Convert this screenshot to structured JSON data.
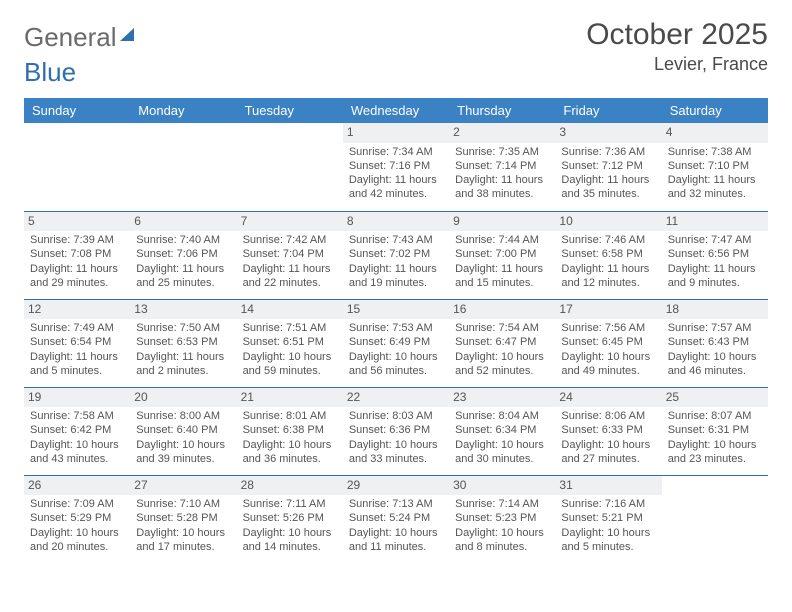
{
  "logo": {
    "word1": "General",
    "word2": "Blue"
  },
  "title": {
    "month": "October 2025",
    "location": "Levier, France"
  },
  "colors": {
    "header_bg": "#3b82c4",
    "header_text": "#ffffff",
    "cell_border": "#2f6fad",
    "daynum_bg": "#eef0f1",
    "text": "#555555",
    "logo_gray": "#6a6a6a",
    "logo_blue": "#2f6fad"
  },
  "weekdays": [
    "Sunday",
    "Monday",
    "Tuesday",
    "Wednesday",
    "Thursday",
    "Friday",
    "Saturday"
  ],
  "weeks": [
    [
      {
        "empty": true
      },
      {
        "empty": true
      },
      {
        "empty": true
      },
      {
        "day": "1",
        "sunrise": "Sunrise: 7:34 AM",
        "sunset": "Sunset: 7:16 PM",
        "daylight1": "Daylight: 11 hours",
        "daylight2": "and 42 minutes."
      },
      {
        "day": "2",
        "sunrise": "Sunrise: 7:35 AM",
        "sunset": "Sunset: 7:14 PM",
        "daylight1": "Daylight: 11 hours",
        "daylight2": "and 38 minutes."
      },
      {
        "day": "3",
        "sunrise": "Sunrise: 7:36 AM",
        "sunset": "Sunset: 7:12 PM",
        "daylight1": "Daylight: 11 hours",
        "daylight2": "and 35 minutes."
      },
      {
        "day": "4",
        "sunrise": "Sunrise: 7:38 AM",
        "sunset": "Sunset: 7:10 PM",
        "daylight1": "Daylight: 11 hours",
        "daylight2": "and 32 minutes."
      }
    ],
    [
      {
        "day": "5",
        "sunrise": "Sunrise: 7:39 AM",
        "sunset": "Sunset: 7:08 PM",
        "daylight1": "Daylight: 11 hours",
        "daylight2": "and 29 minutes."
      },
      {
        "day": "6",
        "sunrise": "Sunrise: 7:40 AM",
        "sunset": "Sunset: 7:06 PM",
        "daylight1": "Daylight: 11 hours",
        "daylight2": "and 25 minutes."
      },
      {
        "day": "7",
        "sunrise": "Sunrise: 7:42 AM",
        "sunset": "Sunset: 7:04 PM",
        "daylight1": "Daylight: 11 hours",
        "daylight2": "and 22 minutes."
      },
      {
        "day": "8",
        "sunrise": "Sunrise: 7:43 AM",
        "sunset": "Sunset: 7:02 PM",
        "daylight1": "Daylight: 11 hours",
        "daylight2": "and 19 minutes."
      },
      {
        "day": "9",
        "sunrise": "Sunrise: 7:44 AM",
        "sunset": "Sunset: 7:00 PM",
        "daylight1": "Daylight: 11 hours",
        "daylight2": "and 15 minutes."
      },
      {
        "day": "10",
        "sunrise": "Sunrise: 7:46 AM",
        "sunset": "Sunset: 6:58 PM",
        "daylight1": "Daylight: 11 hours",
        "daylight2": "and 12 minutes."
      },
      {
        "day": "11",
        "sunrise": "Sunrise: 7:47 AM",
        "sunset": "Sunset: 6:56 PM",
        "daylight1": "Daylight: 11 hours",
        "daylight2": "and 9 minutes."
      }
    ],
    [
      {
        "day": "12",
        "sunrise": "Sunrise: 7:49 AM",
        "sunset": "Sunset: 6:54 PM",
        "daylight1": "Daylight: 11 hours",
        "daylight2": "and 5 minutes."
      },
      {
        "day": "13",
        "sunrise": "Sunrise: 7:50 AM",
        "sunset": "Sunset: 6:53 PM",
        "daylight1": "Daylight: 11 hours",
        "daylight2": "and 2 minutes."
      },
      {
        "day": "14",
        "sunrise": "Sunrise: 7:51 AM",
        "sunset": "Sunset: 6:51 PM",
        "daylight1": "Daylight: 10 hours",
        "daylight2": "and 59 minutes."
      },
      {
        "day": "15",
        "sunrise": "Sunrise: 7:53 AM",
        "sunset": "Sunset: 6:49 PM",
        "daylight1": "Daylight: 10 hours",
        "daylight2": "and 56 minutes."
      },
      {
        "day": "16",
        "sunrise": "Sunrise: 7:54 AM",
        "sunset": "Sunset: 6:47 PM",
        "daylight1": "Daylight: 10 hours",
        "daylight2": "and 52 minutes."
      },
      {
        "day": "17",
        "sunrise": "Sunrise: 7:56 AM",
        "sunset": "Sunset: 6:45 PM",
        "daylight1": "Daylight: 10 hours",
        "daylight2": "and 49 minutes."
      },
      {
        "day": "18",
        "sunrise": "Sunrise: 7:57 AM",
        "sunset": "Sunset: 6:43 PM",
        "daylight1": "Daylight: 10 hours",
        "daylight2": "and 46 minutes."
      }
    ],
    [
      {
        "day": "19",
        "sunrise": "Sunrise: 7:58 AM",
        "sunset": "Sunset: 6:42 PM",
        "daylight1": "Daylight: 10 hours",
        "daylight2": "and 43 minutes."
      },
      {
        "day": "20",
        "sunrise": "Sunrise: 8:00 AM",
        "sunset": "Sunset: 6:40 PM",
        "daylight1": "Daylight: 10 hours",
        "daylight2": "and 39 minutes."
      },
      {
        "day": "21",
        "sunrise": "Sunrise: 8:01 AM",
        "sunset": "Sunset: 6:38 PM",
        "daylight1": "Daylight: 10 hours",
        "daylight2": "and 36 minutes."
      },
      {
        "day": "22",
        "sunrise": "Sunrise: 8:03 AM",
        "sunset": "Sunset: 6:36 PM",
        "daylight1": "Daylight: 10 hours",
        "daylight2": "and 33 minutes."
      },
      {
        "day": "23",
        "sunrise": "Sunrise: 8:04 AM",
        "sunset": "Sunset: 6:34 PM",
        "daylight1": "Daylight: 10 hours",
        "daylight2": "and 30 minutes."
      },
      {
        "day": "24",
        "sunrise": "Sunrise: 8:06 AM",
        "sunset": "Sunset: 6:33 PM",
        "daylight1": "Daylight: 10 hours",
        "daylight2": "and 27 minutes."
      },
      {
        "day": "25",
        "sunrise": "Sunrise: 8:07 AM",
        "sunset": "Sunset: 6:31 PM",
        "daylight1": "Daylight: 10 hours",
        "daylight2": "and 23 minutes."
      }
    ],
    [
      {
        "day": "26",
        "sunrise": "Sunrise: 7:09 AM",
        "sunset": "Sunset: 5:29 PM",
        "daylight1": "Daylight: 10 hours",
        "daylight2": "and 20 minutes."
      },
      {
        "day": "27",
        "sunrise": "Sunrise: 7:10 AM",
        "sunset": "Sunset: 5:28 PM",
        "daylight1": "Daylight: 10 hours",
        "daylight2": "and 17 minutes."
      },
      {
        "day": "28",
        "sunrise": "Sunrise: 7:11 AM",
        "sunset": "Sunset: 5:26 PM",
        "daylight1": "Daylight: 10 hours",
        "daylight2": "and 14 minutes."
      },
      {
        "day": "29",
        "sunrise": "Sunrise: 7:13 AM",
        "sunset": "Sunset: 5:24 PM",
        "daylight1": "Daylight: 10 hours",
        "daylight2": "and 11 minutes."
      },
      {
        "day": "30",
        "sunrise": "Sunrise: 7:14 AM",
        "sunset": "Sunset: 5:23 PM",
        "daylight1": "Daylight: 10 hours",
        "daylight2": "and 8 minutes."
      },
      {
        "day": "31",
        "sunrise": "Sunrise: 7:16 AM",
        "sunset": "Sunset: 5:21 PM",
        "daylight1": "Daylight: 10 hours",
        "daylight2": "and 5 minutes."
      },
      {
        "empty": true
      }
    ]
  ]
}
